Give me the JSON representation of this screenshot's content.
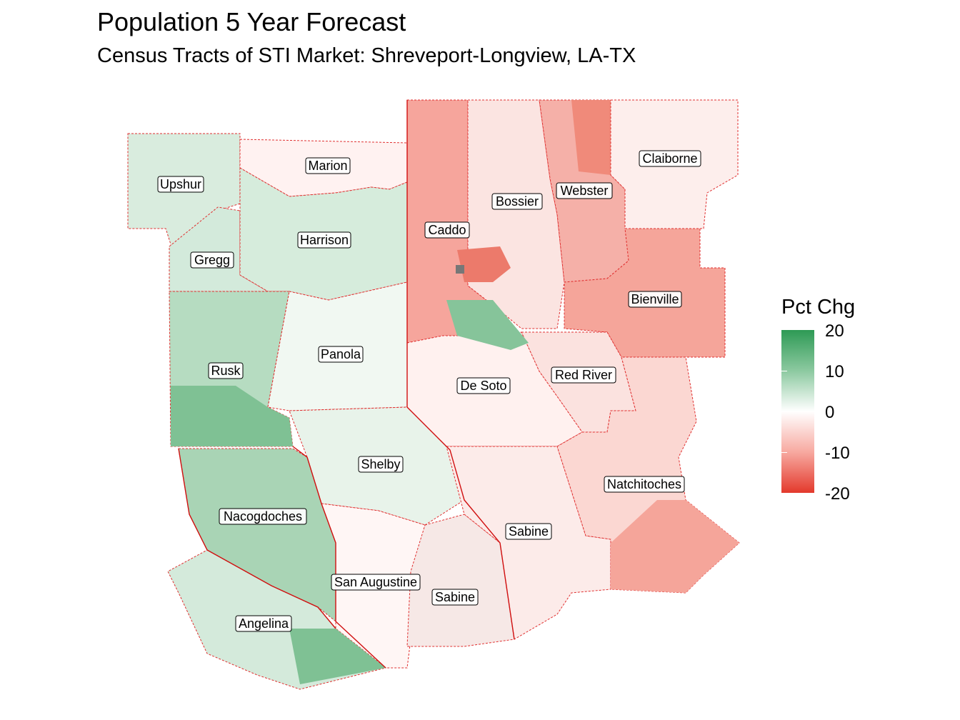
{
  "title": "Population 5 Year Forecast",
  "subtitle": "Census Tracts of STI Market: Shreveport-Longview, LA-TX",
  "legend": {
    "title": "Pct Chg",
    "ticks": [
      "20",
      "10",
      "0",
      "-10",
      "-20"
    ],
    "range": [
      -20,
      20
    ],
    "colors": {
      "high": "#2e9a55",
      "mid": "#ffffff",
      "low": "#e3392c"
    }
  },
  "counties": [
    {
      "name": "Upshur",
      "state": "TX",
      "pct_chg": 6
    },
    {
      "name": "Marion",
      "state": "TX",
      "pct_chg": -1
    },
    {
      "name": "Gregg",
      "state": "TX",
      "pct_chg": 7
    },
    {
      "name": "Harrison",
      "state": "TX",
      "pct_chg": 7
    },
    {
      "name": "Rusk",
      "state": "TX",
      "pct_chg": 9
    },
    {
      "name": "Panola",
      "state": "TX",
      "pct_chg": 3
    },
    {
      "name": "Shelby",
      "state": "TX",
      "pct_chg": 5
    },
    {
      "name": "Nacogdoches",
      "state": "TX",
      "pct_chg": 12
    },
    {
      "name": "San Augustine",
      "state": "TX",
      "pct_chg": -2
    },
    {
      "name": "Sabine",
      "state": "TX",
      "pct_chg": 2
    },
    {
      "name": "Angelina",
      "state": "TX",
      "pct_chg": 9
    },
    {
      "name": "Caddo",
      "state": "LA",
      "pct_chg": -10
    },
    {
      "name": "Bossier",
      "state": "LA",
      "pct_chg": -2
    },
    {
      "name": "Webster",
      "state": "LA",
      "pct_chg": -9
    },
    {
      "name": "Claiborne",
      "state": "LA",
      "pct_chg": -3
    },
    {
      "name": "Bienville",
      "state": "LA",
      "pct_chg": -11
    },
    {
      "name": "De Soto",
      "state": "LA",
      "pct_chg": -2
    },
    {
      "name": "Red River",
      "state": "LA",
      "pct_chg": -4
    },
    {
      "name": "Natchitoches",
      "state": "LA",
      "pct_chg": -7
    },
    {
      "name": "Sabine",
      "state": "LA",
      "pct_chg": -3
    }
  ]
}
